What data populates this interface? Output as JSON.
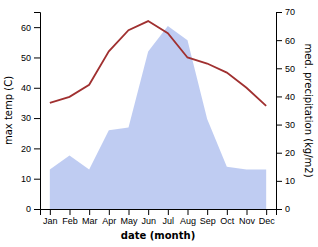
{
  "chart_data": {
    "type": "line",
    "categories": [
      "Jan",
      "Feb",
      "Mar",
      "Apr",
      "May",
      "Jun",
      "Jul",
      "Aug",
      "Sep",
      "Oct",
      "Nov",
      "Dec"
    ],
    "xlabel": "date (month)",
    "ylabel": "max temp (C)",
    "y2label": "med. precipitation (kg/m2)",
    "series": [
      {
        "type": "area",
        "axis": "y2",
        "color": "#aabbee",
        "values": [
          14,
          19,
          14,
          28,
          29,
          56,
          65,
          60,
          32,
          15,
          14,
          14
        ]
      },
      {
        "type": "line",
        "color": "#a03030",
        "values": [
          35,
          37,
          41,
          52,
          59,
          62,
          58,
          50,
          48,
          45,
          40,
          34
        ]
      }
    ],
    "ylim": [
      0,
      65
    ],
    "yticks": [
      0,
      10,
      20,
      30,
      40,
      50,
      60
    ],
    "y2lim": [
      0,
      70
    ],
    "y2ticks": [
      0,
      10,
      20,
      30,
      40,
      50,
      60,
      70
    ]
  }
}
